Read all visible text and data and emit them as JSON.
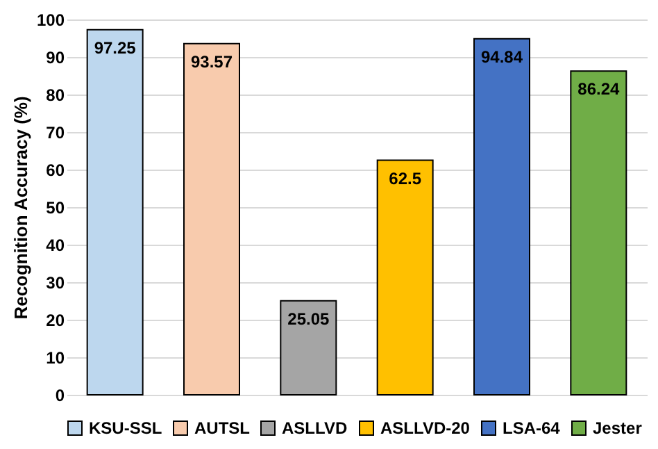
{
  "chart_data": {
    "type": "bar",
    "ylabel": "Recognition Accuracy (%)",
    "categories": [
      null,
      null,
      null,
      null,
      null,
      null
    ],
    "series": [
      {
        "name": "KSU-SSL",
        "color": "#bdd7ee",
        "values": [
          97.25,
          null,
          null,
          null,
          null,
          null
        ]
      },
      {
        "name": "AUTSL",
        "color": "#f8cbad",
        "values": [
          null,
          93.57,
          null,
          null,
          null,
          null
        ]
      },
      {
        "name": "ASLLVD",
        "color": "#a5a5a5",
        "values": [
          null,
          null,
          25.05,
          null,
          null,
          null
        ]
      },
      {
        "name": "ASLLVD-20",
        "color": "#ffc000",
        "values": [
          null,
          null,
          null,
          62.5,
          null,
          null
        ]
      },
      {
        "name": "LSA-64",
        "color": "#4472c4",
        "values": [
          null,
          null,
          null,
          null,
          94.84,
          null
        ]
      },
      {
        "name": "Jester",
        "color": "#70ad47",
        "values": [
          null,
          null,
          null,
          null,
          null,
          86.24
        ]
      }
    ],
    "ylim": [
      0,
      100
    ],
    "yticks": [
      0,
      10,
      20,
      30,
      40,
      50,
      60,
      70,
      80,
      90,
      100
    ],
    "grid": "y",
    "legend": "bottom",
    "tick_labels": "y",
    "data_labels": true
  }
}
